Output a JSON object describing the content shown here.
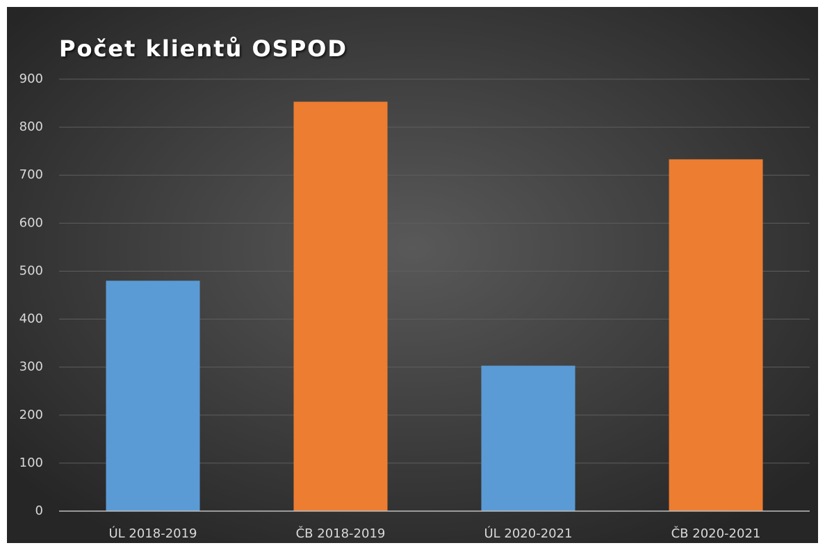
{
  "chart_data": {
    "type": "bar",
    "title": "Počet klientů OSPOD",
    "categories": [
      "ÚL 2018-2019",
      "ČB 2018-2019",
      "ÚL 2020-2021",
      "ČB 2020-2021"
    ],
    "values": [
      480,
      853,
      303,
      733
    ],
    "colors": [
      "#5b9bd5",
      "#ed7d31",
      "#5b9bd5",
      "#ed7d31"
    ],
    "ylim": [
      0,
      900
    ],
    "yticks": [
      0,
      100,
      200,
      300,
      400,
      500,
      600,
      700,
      800,
      900
    ],
    "grid": true
  }
}
